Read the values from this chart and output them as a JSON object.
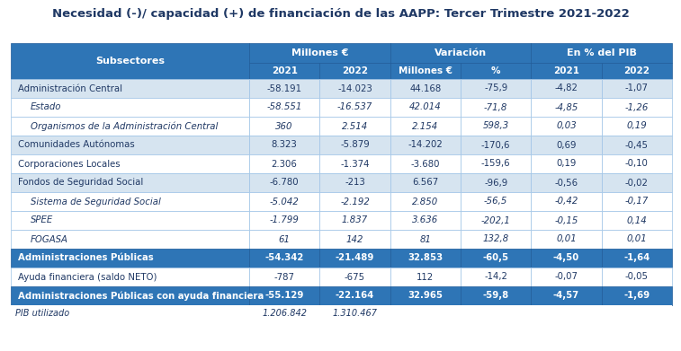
{
  "title": "Necesidad (-)/ capacidad (+) de financiación de las AAPP: Tercer Trimestre 2021-2022",
  "rows": [
    {
      "label": "Administración Central",
      "indent": false,
      "italic": false,
      "bold": false,
      "highlight": "light",
      "values": [
        "-58.191",
        "-14.023",
        "44.168",
        "-75,9",
        "-4,82",
        "-1,07"
      ]
    },
    {
      "label": "Estado",
      "indent": true,
      "italic": true,
      "bold": false,
      "highlight": "white",
      "values": [
        "-58.551",
        "-16.537",
        "42.014",
        "-71,8",
        "-4,85",
        "-1,26"
      ]
    },
    {
      "label": "Organismos de la Administración Central",
      "indent": true,
      "italic": true,
      "bold": false,
      "highlight": "white",
      "values": [
        "360",
        "2.514",
        "2.154",
        "598,3",
        "0,03",
        "0,19"
      ]
    },
    {
      "label": "Comunidades Autónomas",
      "indent": false,
      "italic": false,
      "bold": false,
      "highlight": "light",
      "values": [
        "8.323",
        "-5.879",
        "-14.202",
        "-170,6",
        "0,69",
        "-0,45"
      ]
    },
    {
      "label": "Corporaciones Locales",
      "indent": false,
      "italic": false,
      "bold": false,
      "highlight": "white",
      "values": [
        "2.306",
        "-1.374",
        "-3.680",
        "-159,6",
        "0,19",
        "-0,10"
      ]
    },
    {
      "label": "Fondos de Seguridad Social",
      "indent": false,
      "italic": false,
      "bold": false,
      "highlight": "light",
      "values": [
        "-6.780",
        "-213",
        "6.567",
        "-96,9",
        "-0,56",
        "-0,02"
      ]
    },
    {
      "label": "Sistema de Seguridad Social",
      "indent": true,
      "italic": true,
      "bold": false,
      "highlight": "white",
      "values": [
        "-5.042",
        "-2.192",
        "2.850",
        "-56,5",
        "-0,42",
        "-0,17"
      ]
    },
    {
      "label": "SPEE",
      "indent": true,
      "italic": true,
      "bold": false,
      "highlight": "white",
      "values": [
        "-1.799",
        "1.837",
        "3.636",
        "-202,1",
        "-0,15",
        "0,14"
      ]
    },
    {
      "label": "FOGASA",
      "indent": true,
      "italic": true,
      "bold": false,
      "highlight": "white",
      "values": [
        "61",
        "142",
        "81",
        "132,8",
        "0,01",
        "0,01"
      ]
    },
    {
      "label": "Administraciones Públicas",
      "indent": false,
      "italic": false,
      "bold": true,
      "highlight": "blue_dark",
      "values": [
        "-54.342",
        "-21.489",
        "32.853",
        "-60,5",
        "-4,50",
        "-1,64"
      ]
    },
    {
      "label": "Ayuda financiera (saldo NETO)",
      "indent": false,
      "italic": false,
      "bold": false,
      "highlight": "white",
      "values": [
        "-787",
        "-675",
        "112",
        "-14,2",
        "-0,07",
        "-0,05"
      ]
    },
    {
      "label": "Administraciones Públicas con ayuda financiera",
      "indent": false,
      "italic": false,
      "bold": true,
      "highlight": "blue_dark",
      "values": [
        "-55.129",
        "-22.164",
        "32.965",
        "-59,8",
        "-4,57",
        "-1,69"
      ]
    }
  ],
  "pib_label": "PIB utilizado",
  "pib_values": [
    "1.206.842",
    "1.310.467",
    "",
    "",
    "",
    ""
  ],
  "colors": {
    "header_dark": "#2E75B6",
    "row_light": "#D6E4F0",
    "row_white": "#FFFFFF",
    "row_blue_dark": "#2E75B6",
    "text_dark": "#1F3864",
    "title_color": "#1F3864",
    "border": "#9DC3E6"
  },
  "figw": 7.57,
  "figh": 3.91,
  "dpi": 100
}
